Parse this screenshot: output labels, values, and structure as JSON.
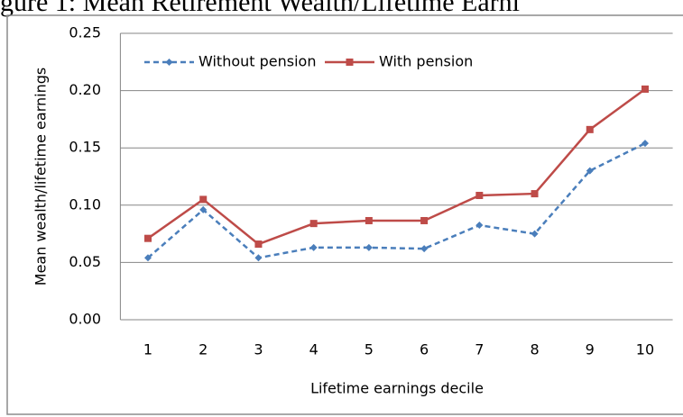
{
  "chart_data": {
    "type": "line",
    "title": "gure 1: Mean Retirement Wealth/Lifetime Earni",
    "x_label": "Lifetime earnings decile",
    "y_label": "Mean wealth/lifetime earnings",
    "categories": [
      "1",
      "2",
      "3",
      "4",
      "5",
      "6",
      "7",
      "8",
      "9",
      "10"
    ],
    "series": [
      {
        "name": "Without pension",
        "color": "#4a7ebb",
        "dash": true,
        "marker": "diamond",
        "values": [
          0.054,
          0.096,
          0.054,
          0.063,
          0.063,
          0.062,
          0.0825,
          0.075,
          0.13,
          0.154
        ]
      },
      {
        "name": "With pension",
        "color": "#be4b48",
        "dash": false,
        "marker": "square",
        "values": [
          0.071,
          0.105,
          0.066,
          0.084,
          0.0865,
          0.0865,
          0.1085,
          0.11,
          0.166,
          0.2013
        ]
      }
    ],
    "ylim": [
      0,
      0.25
    ],
    "yticks": [
      {
        "value": 0,
        "label": "0.00"
      },
      {
        "value": 0.05,
        "label": "0.05"
      },
      {
        "value": 0.1,
        "label": "0.10"
      },
      {
        "value": 0.15,
        "label": "0.15"
      },
      {
        "value": 0.2,
        "label": "0.20"
      },
      {
        "value": 0.25,
        "label": "0.25"
      }
    ],
    "grid": true
  }
}
